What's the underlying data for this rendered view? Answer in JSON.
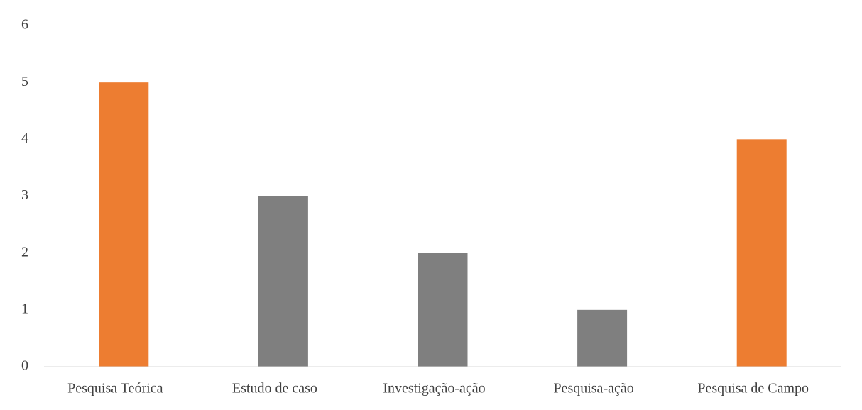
{
  "chart_data": {
    "type": "bar",
    "categories": [
      "Pesquisa Teórica",
      "Estudo de caso",
      "Investigação-ação",
      "Pesquisa-ação",
      "Pesquisa de Campo"
    ],
    "values": [
      5,
      3,
      2,
      1,
      4
    ],
    "colors": [
      "#ed7d31",
      "#7f7f7f",
      "#7f7f7f",
      "#7f7f7f",
      "#ed7d31"
    ],
    "ylim": [
      0,
      6
    ],
    "yticks": [
      0,
      1,
      2,
      3,
      4,
      5,
      6
    ],
    "grid": false
  }
}
